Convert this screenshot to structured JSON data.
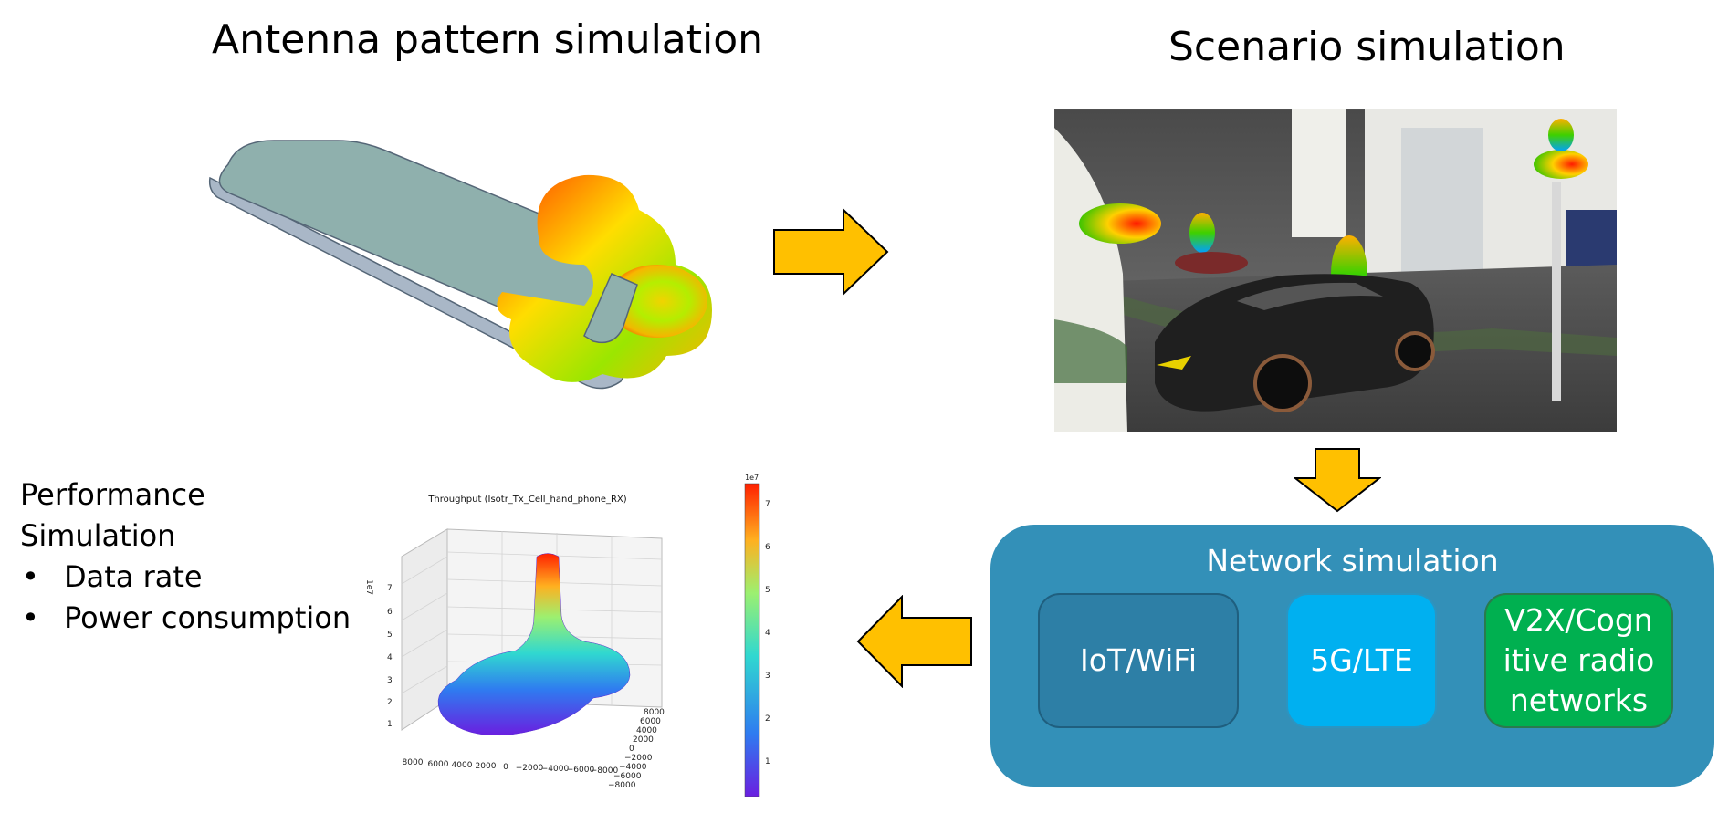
{
  "antenna_title": "Antenna pattern simulation",
  "scenario_title": "Scenario simulation",
  "performance": {
    "heading_line1": "Performance",
    "heading_line2": "Simulation",
    "items": [
      "Data rate",
      "Power consumption"
    ]
  },
  "network": {
    "title": "Network simulation",
    "boxes": {
      "iot": "IoT/WiFi",
      "fiveg": "5G/LTE",
      "v2x": "V2X/Cogn itive radio networks"
    }
  },
  "plot": {
    "title": "Throughput (Isotr_Tx_Cell_hand_phone_RX)",
    "z_exp": "1e7",
    "z_ticks": [
      "1",
      "2",
      "3",
      "4",
      "5",
      "6",
      "7"
    ],
    "x_ticks": [
      "8000",
      "6000",
      "4000",
      "2000",
      "0",
      "−2000",
      "−4000",
      "−6000",
      "−8000"
    ],
    "y_ticks": [
      "8000",
      "6000",
      "4000",
      "2000",
      "0",
      "−2000",
      "−4000",
      "−6000",
      "−8000"
    ],
    "colorbar_exp": "1e7",
    "colorbar_ticks": [
      "1",
      "2",
      "3",
      "4",
      "5",
      "6",
      "7"
    ]
  },
  "colors": {
    "arrow_fill": "#ffc000",
    "panel": "#3390b8",
    "iot_box": "#2d7fa6",
    "fiveg_box": "#00b0f0",
    "v2x_box": "#00b050"
  }
}
